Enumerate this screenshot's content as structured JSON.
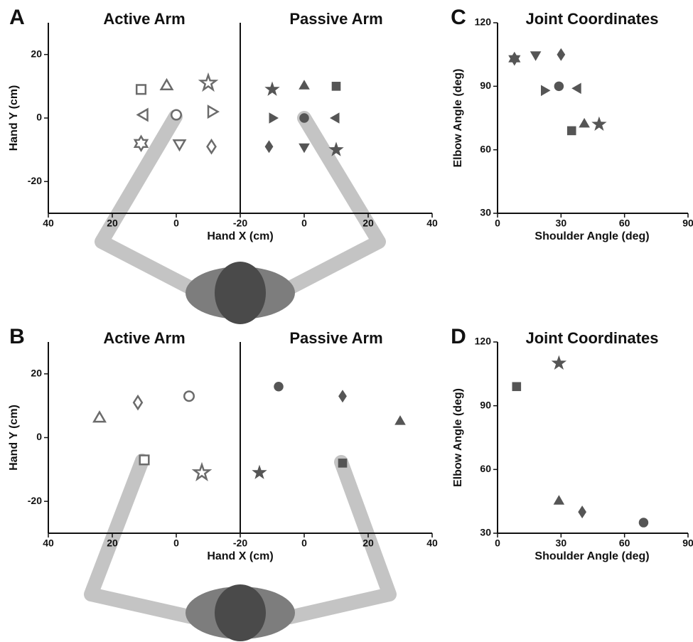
{
  "chart_data": [
    {
      "type": "scatter",
      "panel": "A",
      "title": "Active Arm",
      "x_label": "Hand X (cm)",
      "y_label": "Hand Y (cm)",
      "xlim": [
        40,
        -20
      ],
      "ylim": [
        -30,
        30
      ],
      "xticks": [
        40,
        20,
        0,
        -20
      ],
      "yticks": [
        20,
        0,
        -20
      ],
      "filled": false,
      "color": "#6b6b6b",
      "markers": [
        "square",
        "triangle-up",
        "star",
        "triangle-left",
        "circle",
        "triangle-right",
        "hexagram",
        "triangle-down",
        "diamond"
      ],
      "x": [
        11,
        3,
        -10,
        10,
        0,
        -11,
        11,
        -1,
        -11
      ],
      "values": [
        9,
        10,
        11,
        1,
        1,
        2,
        -8,
        -8,
        -9
      ]
    },
    {
      "type": "scatter",
      "title": "Passive Arm",
      "xlim": [
        -20,
        40
      ],
      "ylim": [
        -30,
        30
      ],
      "xticks": [
        0,
        20,
        40
      ],
      "filled": true,
      "color": "#555555",
      "markers": [
        "star",
        "triangle-up",
        "square",
        "triangle-right",
        "circle",
        "triangle-left",
        "diamond",
        "triangle-down",
        "star"
      ],
      "x": [
        -10,
        0,
        10,
        -10,
        0,
        10,
        -11,
        0,
        10
      ],
      "values": [
        9,
        10,
        10,
        0,
        0,
        0,
        -9,
        -9,
        -10
      ]
    },
    {
      "type": "scatter",
      "panel": "C",
      "title": "Joint Coordinates",
      "x_label": "Shoulder Angle (deg)",
      "y_label": "Elbow Angle (deg)",
      "xlim": [
        0,
        90
      ],
      "ylim": [
        30,
        120
      ],
      "xticks": [
        0,
        30,
        60,
        90
      ],
      "yticks": [
        120,
        90,
        60,
        30
      ],
      "filled": true,
      "color": "#555555",
      "markers": [
        "hexagram",
        "triangle-down",
        "diamond",
        "triangle-right",
        "circle",
        "triangle-left",
        "square",
        "triangle-up",
        "star"
      ],
      "x": [
        8,
        18,
        30,
        22,
        29,
        38,
        35,
        41,
        48
      ],
      "values": [
        103,
        105,
        105,
        88,
        90,
        89,
        69,
        72,
        72
      ]
    },
    {
      "type": "scatter",
      "panel": "B",
      "title": "Active Arm",
      "x_label": "Hand X (cm)",
      "y_label": "Hand Y (cm)",
      "xlim": [
        40,
        -20
      ],
      "ylim": [
        -30,
        30
      ],
      "xticks": [
        40,
        20,
        0,
        -20
      ],
      "yticks": [
        20,
        0,
        -20
      ],
      "filled": false,
      "color": "#6b6b6b",
      "markers": [
        "triangle-up",
        "diamond",
        "circle",
        "square",
        "star"
      ],
      "x": [
        24,
        12,
        -4,
        10,
        -8
      ],
      "values": [
        6,
        11,
        13,
        -7,
        -11
      ]
    },
    {
      "type": "scatter",
      "title": "Passive Arm",
      "xlim": [
        -20,
        40
      ],
      "ylim": [
        -30,
        30
      ],
      "xticks": [
        0,
        20,
        40
      ],
      "filled": true,
      "color": "#555555",
      "markers": [
        "circle",
        "diamond",
        "triangle-up",
        "star",
        "square"
      ],
      "x": [
        -8,
        12,
        30,
        -14,
        12
      ],
      "values": [
        16,
        13,
        5,
        -11,
        -8
      ]
    },
    {
      "type": "scatter",
      "panel": "D",
      "title": "Joint Coordinates",
      "x_label": "Shoulder Angle (deg)",
      "y_label": "Elbow Angle (deg)",
      "xlim": [
        0,
        90
      ],
      "ylim": [
        30,
        120
      ],
      "xticks": [
        0,
        30,
        60,
        90
      ],
      "yticks": [
        120,
        90,
        60,
        30
      ],
      "filled": true,
      "color": "#555555",
      "markers": [
        "square",
        "star",
        "triangle-up",
        "diamond",
        "circle"
      ],
      "x": [
        9,
        29,
        29,
        40,
        69
      ],
      "values": [
        99,
        110,
        45,
        40,
        35
      ]
    }
  ]
}
